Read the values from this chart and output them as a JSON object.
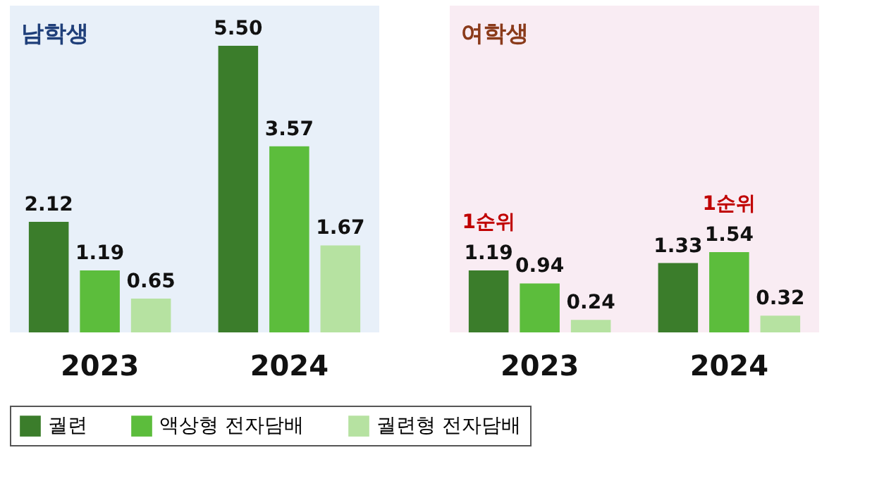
{
  "chart_data": [
    {
      "type": "bar",
      "title": "남학생",
      "categories": [
        "2023",
        "2024"
      ],
      "legend": "bottom",
      "series": [
        {
          "name": "궐련",
          "color": "#3b7d2b",
          "values": [
            2.12,
            5.5
          ],
          "value_labels": [
            "2.12",
            "5.50"
          ]
        },
        {
          "name": "액상형 전자담배",
          "color": "#5cbd3c",
          "values": [
            1.19,
            3.57
          ],
          "value_labels": [
            "1.19",
            "3.57"
          ]
        },
        {
          "name": "궐련형 전자담배",
          "color": "#b6e2a1",
          "values": [
            0.65,
            1.67
          ],
          "value_labels": [
            "0.65",
            "1.67"
          ]
        }
      ]
    },
    {
      "type": "bar",
      "title": "여학생",
      "categories": [
        "2023",
        "2024"
      ],
      "legend": "bottom",
      "series": [
        {
          "name": "궐련",
          "color": "#3b7d2b",
          "values": [
            1.19,
            1.33
          ],
          "value_labels": [
            "1.19",
            "1.33"
          ]
        },
        {
          "name": "액상형 전자담배",
          "color": "#5cbd3c",
          "values": [
            0.94,
            1.54
          ],
          "value_labels": [
            "0.94",
            "1.54"
          ]
        },
        {
          "name": "궐련형 전자담배",
          "color": "#b6e2a1",
          "values": [
            0.24,
            0.32
          ],
          "value_labels": [
            "0.24",
            "0.32"
          ]
        }
      ],
      "annotations": [
        "1순위",
        "1순위"
      ]
    }
  ]
}
